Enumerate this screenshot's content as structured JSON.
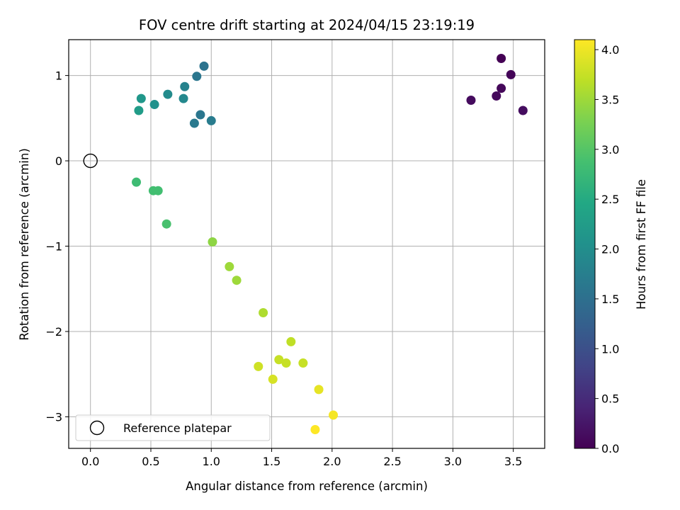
{
  "chart_data": {
    "type": "scatter",
    "title": "FOV centre drift starting at 2024/04/15 23:19:19",
    "xlabel": "Angular distance from reference (arcmin)",
    "ylabel": "Rotation from reference (arcmin)",
    "xlim": [
      -0.18,
      3.76
    ],
    "ylim": [
      -3.37,
      1.42
    ],
    "xticks": [
      0.0,
      0.5,
      1.0,
      1.5,
      2.0,
      2.5,
      3.0,
      3.5
    ],
    "xtick_labels": [
      "0.0",
      "0.5",
      "1.0",
      "1.5",
      "2.0",
      "2.5",
      "3.0",
      "3.5"
    ],
    "yticks": [
      1,
      0,
      -1,
      -2,
      -3
    ],
    "ytick_labels": [
      "1",
      "0",
      "−1",
      "−2",
      "−3"
    ],
    "grid": true,
    "colorbar": {
      "label": "Hours from first FF file",
      "colormap": "viridis",
      "range": [
        0.0,
        4.1
      ],
      "ticks": [
        0.0,
        0.5,
        1.0,
        1.5,
        2.0,
        2.5,
        3.0,
        3.5,
        4.0
      ],
      "tick_labels": [
        "0.0",
        "0.5",
        "1.0",
        "1.5",
        "2.0",
        "2.5",
        "3.0",
        "3.5",
        "4.0"
      ]
    },
    "legend": {
      "placement": "lower-left",
      "entries": [
        "Reference platepar"
      ]
    },
    "reference_point": {
      "x": 0.0,
      "y": 0.0
    },
    "points": [
      {
        "x": 3.4,
        "y": 1.2,
        "c": 0.0
      },
      {
        "x": 3.48,
        "y": 1.01,
        "c": 0.05
      },
      {
        "x": 3.4,
        "y": 0.85,
        "c": 0.08
      },
      {
        "x": 3.36,
        "y": 0.76,
        "c": 0.1
      },
      {
        "x": 3.15,
        "y": 0.71,
        "c": 0.12
      },
      {
        "x": 3.58,
        "y": 0.59,
        "c": 0.14
      },
      {
        "x": 0.94,
        "y": 1.11,
        "c": 1.55
      },
      {
        "x": 0.88,
        "y": 0.99,
        "c": 1.6
      },
      {
        "x": 0.91,
        "y": 0.54,
        "c": 1.6
      },
      {
        "x": 0.86,
        "y": 0.44,
        "c": 1.65
      },
      {
        "x": 1.0,
        "y": 0.47,
        "c": 1.7
      },
      {
        "x": 0.78,
        "y": 0.87,
        "c": 1.8
      },
      {
        "x": 0.64,
        "y": 0.78,
        "c": 1.95
      },
      {
        "x": 0.77,
        "y": 0.73,
        "c": 1.9
      },
      {
        "x": 0.42,
        "y": 0.73,
        "c": 2.15
      },
      {
        "x": 0.53,
        "y": 0.66,
        "c": 2.05
      },
      {
        "x": 0.4,
        "y": 0.59,
        "c": 2.25
      },
      {
        "x": 0.38,
        "y": -0.25,
        "c": 2.8
      },
      {
        "x": 0.52,
        "y": -0.35,
        "c": 2.85
      },
      {
        "x": 0.56,
        "y": -0.35,
        "c": 2.85
      },
      {
        "x": 0.63,
        "y": -0.74,
        "c": 2.9
      },
      {
        "x": 1.01,
        "y": -0.95,
        "c": 3.4
      },
      {
        "x": 1.15,
        "y": -1.24,
        "c": 3.5
      },
      {
        "x": 1.21,
        "y": -1.4,
        "c": 3.5
      },
      {
        "x": 1.43,
        "y": -1.78,
        "c": 3.6
      },
      {
        "x": 1.66,
        "y": -2.12,
        "c": 3.7
      },
      {
        "x": 1.56,
        "y": -2.33,
        "c": 3.75
      },
      {
        "x": 1.62,
        "y": -2.37,
        "c": 3.75
      },
      {
        "x": 1.76,
        "y": -2.37,
        "c": 3.75
      },
      {
        "x": 1.39,
        "y": -2.41,
        "c": 3.8
      },
      {
        "x": 1.51,
        "y": -2.56,
        "c": 3.85
      },
      {
        "x": 1.89,
        "y": -2.68,
        "c": 3.95
      },
      {
        "x": 2.01,
        "y": -2.98,
        "c": 4.05
      },
      {
        "x": 1.86,
        "y": -3.15,
        "c": 4.1
      }
    ]
  }
}
